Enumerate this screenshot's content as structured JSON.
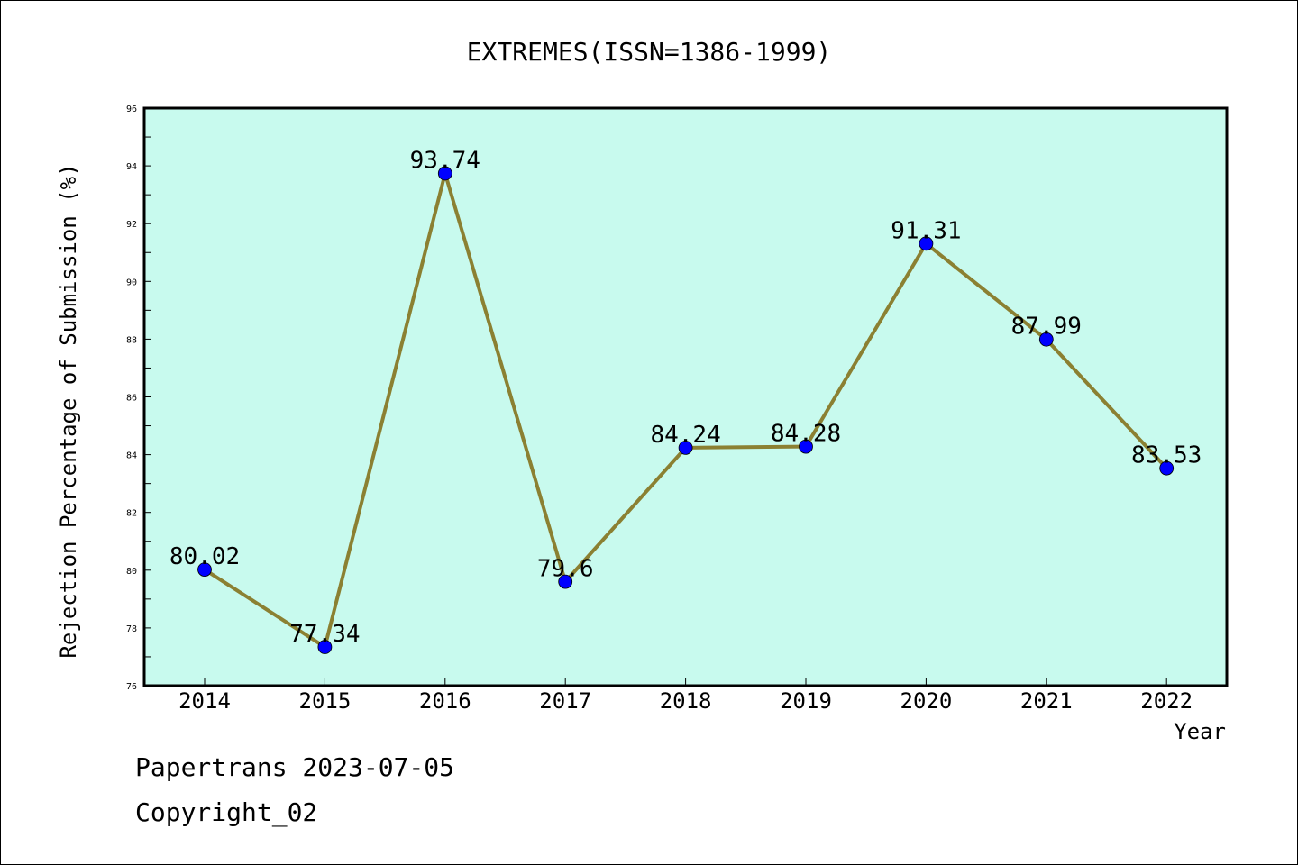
{
  "chart_data": {
    "type": "line",
    "title": "EXTREMES(ISSN=1386-1999)",
    "xlabel": "Year",
    "ylabel": "Rejection Percentage of Submission (%)",
    "categories": [
      "2014",
      "2015",
      "2016",
      "2017",
      "2018",
      "2019",
      "2020",
      "2021",
      "2022"
    ],
    "values": [
      80.02,
      77.34,
      93.74,
      79.6,
      84.24,
      84.28,
      91.31,
      87.99,
      83.53
    ],
    "data_labels": [
      "80.02",
      "77.34",
      "93.74",
      "79.6",
      "84.24",
      "84.28",
      "91.31",
      "87.99",
      "83.53"
    ],
    "ylim": [
      76,
      96
    ],
    "yticks": [
      "76",
      "78",
      "80",
      "82",
      "84",
      "86",
      "88",
      "90",
      "92",
      "94",
      "96"
    ],
    "grid": false,
    "legend": "none",
    "line_color": "#8B8032",
    "marker_color": "#0000FF",
    "plot_background": "#C8FAEE"
  },
  "footer": {
    "line1": "Papertrans 2023-07-05",
    "line2": "Copyright_02"
  }
}
